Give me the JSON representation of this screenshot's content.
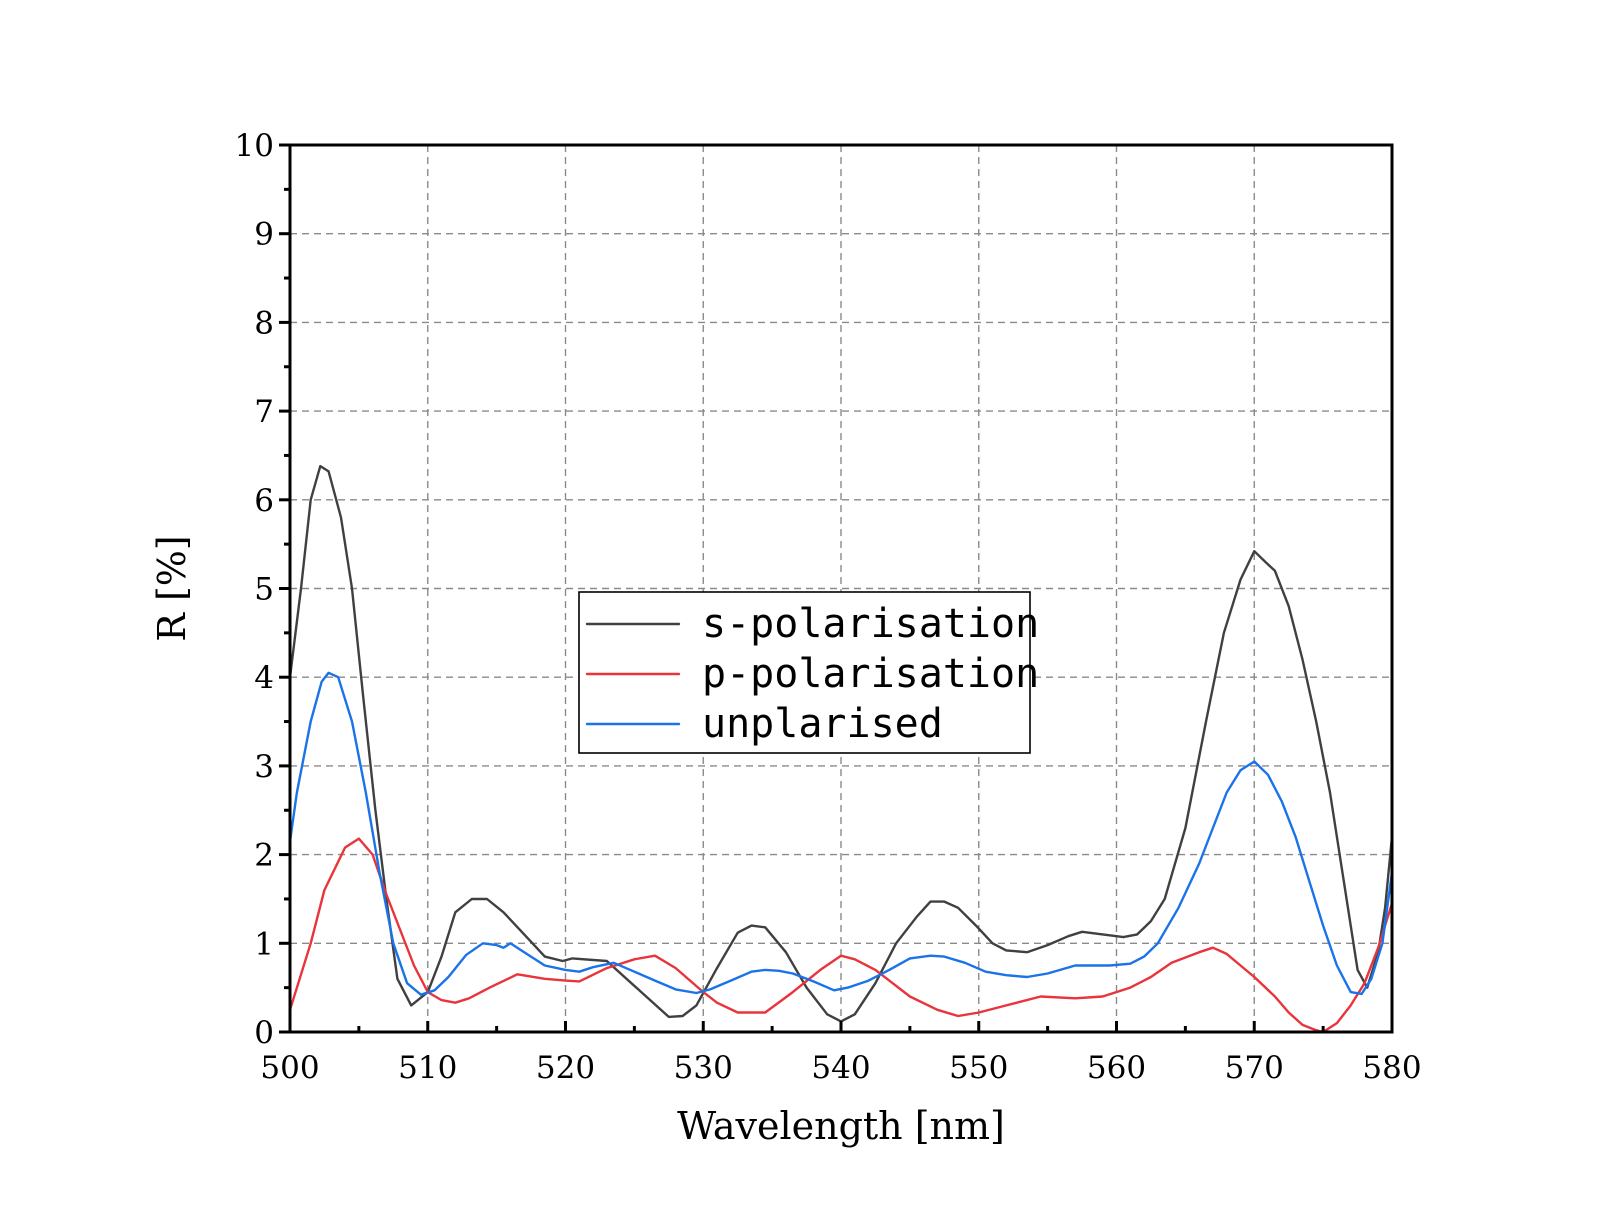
{
  "chart_data": {
    "type": "line",
    "title": "",
    "xlabel": "Wavelength [nm]",
    "ylabel": "R [%]",
    "xlim": [
      500,
      580
    ],
    "ylim": [
      0,
      10
    ],
    "xticks": [
      500,
      510,
      520,
      530,
      540,
      550,
      560,
      570,
      580
    ],
    "yticks": [
      0,
      1,
      2,
      3,
      4,
      5,
      6,
      7,
      8,
      9,
      10
    ],
    "grid": true,
    "legend_position": "center-left",
    "series": [
      {
        "name": "s-polarisation",
        "color": "#404040",
        "points": [
          [
            500,
            4.0
          ],
          [
            500.8,
            5.0
          ],
          [
            501.5,
            6.0
          ],
          [
            502.2,
            6.38
          ],
          [
            502.8,
            6.32
          ],
          [
            503.7,
            5.8
          ],
          [
            504.5,
            5.0
          ],
          [
            505.3,
            3.8
          ],
          [
            506.2,
            2.5
          ],
          [
            507,
            1.5
          ],
          [
            507.8,
            0.6
          ],
          [
            508.8,
            0.3
          ],
          [
            510,
            0.45
          ],
          [
            511,
            0.85
          ],
          [
            512,
            1.35
          ],
          [
            513.2,
            1.5
          ],
          [
            514.3,
            1.5
          ],
          [
            515.5,
            1.35
          ],
          [
            517,
            1.1
          ],
          [
            518.5,
            0.85
          ],
          [
            519.8,
            0.8
          ],
          [
            520.5,
            0.83
          ],
          [
            523,
            0.8
          ],
          [
            525.5,
            0.45
          ],
          [
            527.5,
            0.17
          ],
          [
            528.5,
            0.18
          ],
          [
            529.5,
            0.3
          ],
          [
            531,
            0.72
          ],
          [
            532.5,
            1.12
          ],
          [
            533.5,
            1.2
          ],
          [
            534.5,
            1.18
          ],
          [
            536,
            0.9
          ],
          [
            537.5,
            0.5
          ],
          [
            539,
            0.2
          ],
          [
            540,
            0.12
          ],
          [
            541,
            0.2
          ],
          [
            542.5,
            0.55
          ],
          [
            544,
            1.0
          ],
          [
            545.5,
            1.3
          ],
          [
            546.5,
            1.47
          ],
          [
            547.5,
            1.47
          ],
          [
            548.5,
            1.4
          ],
          [
            549.8,
            1.2
          ],
          [
            551,
            1.0
          ],
          [
            552,
            0.92
          ],
          [
            553.5,
            0.9
          ],
          [
            555,
            0.98
          ],
          [
            556.5,
            1.08
          ],
          [
            557.5,
            1.13
          ],
          [
            559,
            1.1
          ],
          [
            560.5,
            1.07
          ],
          [
            561.5,
            1.1
          ],
          [
            562.5,
            1.25
          ],
          [
            563.5,
            1.5
          ],
          [
            565,
            2.3
          ],
          [
            566.5,
            3.5
          ],
          [
            567.8,
            4.5
          ],
          [
            569,
            5.1
          ],
          [
            570,
            5.42
          ],
          [
            570.8,
            5.3
          ],
          [
            571.5,
            5.2
          ],
          [
            572.5,
            4.8
          ],
          [
            573.5,
            4.2
          ],
          [
            574.5,
            3.5
          ],
          [
            575.5,
            2.7
          ],
          [
            576.5,
            1.7
          ],
          [
            577.5,
            0.7
          ],
          [
            578.2,
            0.5
          ],
          [
            579,
            0.9
          ],
          [
            579.5,
            1.4
          ],
          [
            580,
            2.2
          ]
        ]
      },
      {
        "name": "p-polarisation",
        "color": "#e8343a",
        "points": [
          [
            500,
            0.25
          ],
          [
            501.5,
            1.0
          ],
          [
            502.5,
            1.6
          ],
          [
            504,
            2.08
          ],
          [
            505,
            2.18
          ],
          [
            506,
            2.0
          ],
          [
            507,
            1.55
          ],
          [
            508,
            1.15
          ],
          [
            509,
            0.75
          ],
          [
            510,
            0.45
          ],
          [
            511,
            0.36
          ],
          [
            512,
            0.33
          ],
          [
            513,
            0.38
          ],
          [
            514.5,
            0.5
          ],
          [
            516.5,
            0.65
          ],
          [
            518.5,
            0.6
          ],
          [
            520,
            0.58
          ],
          [
            521,
            0.57
          ],
          [
            523,
            0.72
          ],
          [
            525,
            0.82
          ],
          [
            526.5,
            0.86
          ],
          [
            528,
            0.72
          ],
          [
            530,
            0.45
          ],
          [
            531,
            0.33
          ],
          [
            532.5,
            0.22
          ],
          [
            534.5,
            0.22
          ],
          [
            536.5,
            0.45
          ],
          [
            538.5,
            0.7
          ],
          [
            540,
            0.86
          ],
          [
            541,
            0.82
          ],
          [
            542.5,
            0.7
          ],
          [
            545,
            0.4
          ],
          [
            547,
            0.25
          ],
          [
            548.5,
            0.18
          ],
          [
            550,
            0.22
          ],
          [
            552,
            0.3
          ],
          [
            554.5,
            0.4
          ],
          [
            557,
            0.38
          ],
          [
            559,
            0.4
          ],
          [
            561,
            0.5
          ],
          [
            562.5,
            0.62
          ],
          [
            564,
            0.78
          ],
          [
            566,
            0.9
          ],
          [
            567,
            0.95
          ],
          [
            568,
            0.88
          ],
          [
            569,
            0.75
          ],
          [
            570,
            0.62
          ],
          [
            571.5,
            0.4
          ],
          [
            572.5,
            0.22
          ],
          [
            573.5,
            0.08
          ],
          [
            574.5,
            0.02
          ],
          [
            575,
            0.0
          ],
          [
            576,
            0.1
          ],
          [
            577,
            0.3
          ],
          [
            578,
            0.55
          ],
          [
            579,
            0.95
          ],
          [
            580,
            1.45
          ]
        ]
      },
      {
        "name": "unplarised",
        "color": "#1a73e8",
        "points": [
          [
            500,
            2.15
          ],
          [
            500.5,
            2.7
          ],
          [
            501.5,
            3.5
          ],
          [
            502.3,
            3.95
          ],
          [
            502.8,
            4.05
          ],
          [
            503.5,
            4.0
          ],
          [
            504.5,
            3.5
          ],
          [
            505.5,
            2.7
          ],
          [
            506.5,
            1.8
          ],
          [
            507.5,
            1.0
          ],
          [
            508.5,
            0.55
          ],
          [
            509.5,
            0.42
          ],
          [
            510.5,
            0.47
          ],
          [
            511.5,
            0.62
          ],
          [
            512.8,
            0.87
          ],
          [
            514,
            1.0
          ],
          [
            515,
            0.98
          ],
          [
            515.5,
            0.95
          ],
          [
            516,
            1.0
          ],
          [
            517,
            0.9
          ],
          [
            518.5,
            0.75
          ],
          [
            520,
            0.7
          ],
          [
            521,
            0.68
          ],
          [
            522,
            0.73
          ],
          [
            523.5,
            0.78
          ],
          [
            525,
            0.68
          ],
          [
            526.5,
            0.58
          ],
          [
            528,
            0.48
          ],
          [
            529.5,
            0.44
          ],
          [
            530.5,
            0.48
          ],
          [
            532,
            0.58
          ],
          [
            533.5,
            0.68
          ],
          [
            534.5,
            0.7
          ],
          [
            535.5,
            0.69
          ],
          [
            536.5,
            0.66
          ],
          [
            538,
            0.57
          ],
          [
            539.5,
            0.47
          ],
          [
            540.5,
            0.5
          ],
          [
            542,
            0.58
          ],
          [
            543.5,
            0.7
          ],
          [
            545,
            0.83
          ],
          [
            546.5,
            0.86
          ],
          [
            547.5,
            0.85
          ],
          [
            549,
            0.78
          ],
          [
            550.5,
            0.68
          ],
          [
            552,
            0.64
          ],
          [
            553.5,
            0.62
          ],
          [
            555,
            0.66
          ],
          [
            557,
            0.75
          ],
          [
            559.5,
            0.75
          ],
          [
            561,
            0.77
          ],
          [
            562,
            0.85
          ],
          [
            563,
            1.0
          ],
          [
            564.5,
            1.4
          ],
          [
            566,
            1.9
          ],
          [
            567,
            2.3
          ],
          [
            568,
            2.7
          ],
          [
            569,
            2.95
          ],
          [
            570,
            3.05
          ],
          [
            571,
            2.9
          ],
          [
            572,
            2.6
          ],
          [
            573,
            2.2
          ],
          [
            574,
            1.7
          ],
          [
            575,
            1.2
          ],
          [
            576,
            0.75
          ],
          [
            577,
            0.45
          ],
          [
            577.8,
            0.43
          ],
          [
            578.5,
            0.6
          ],
          [
            579.3,
            1.0
          ],
          [
            580,
            1.8
          ]
        ]
      }
    ]
  }
}
